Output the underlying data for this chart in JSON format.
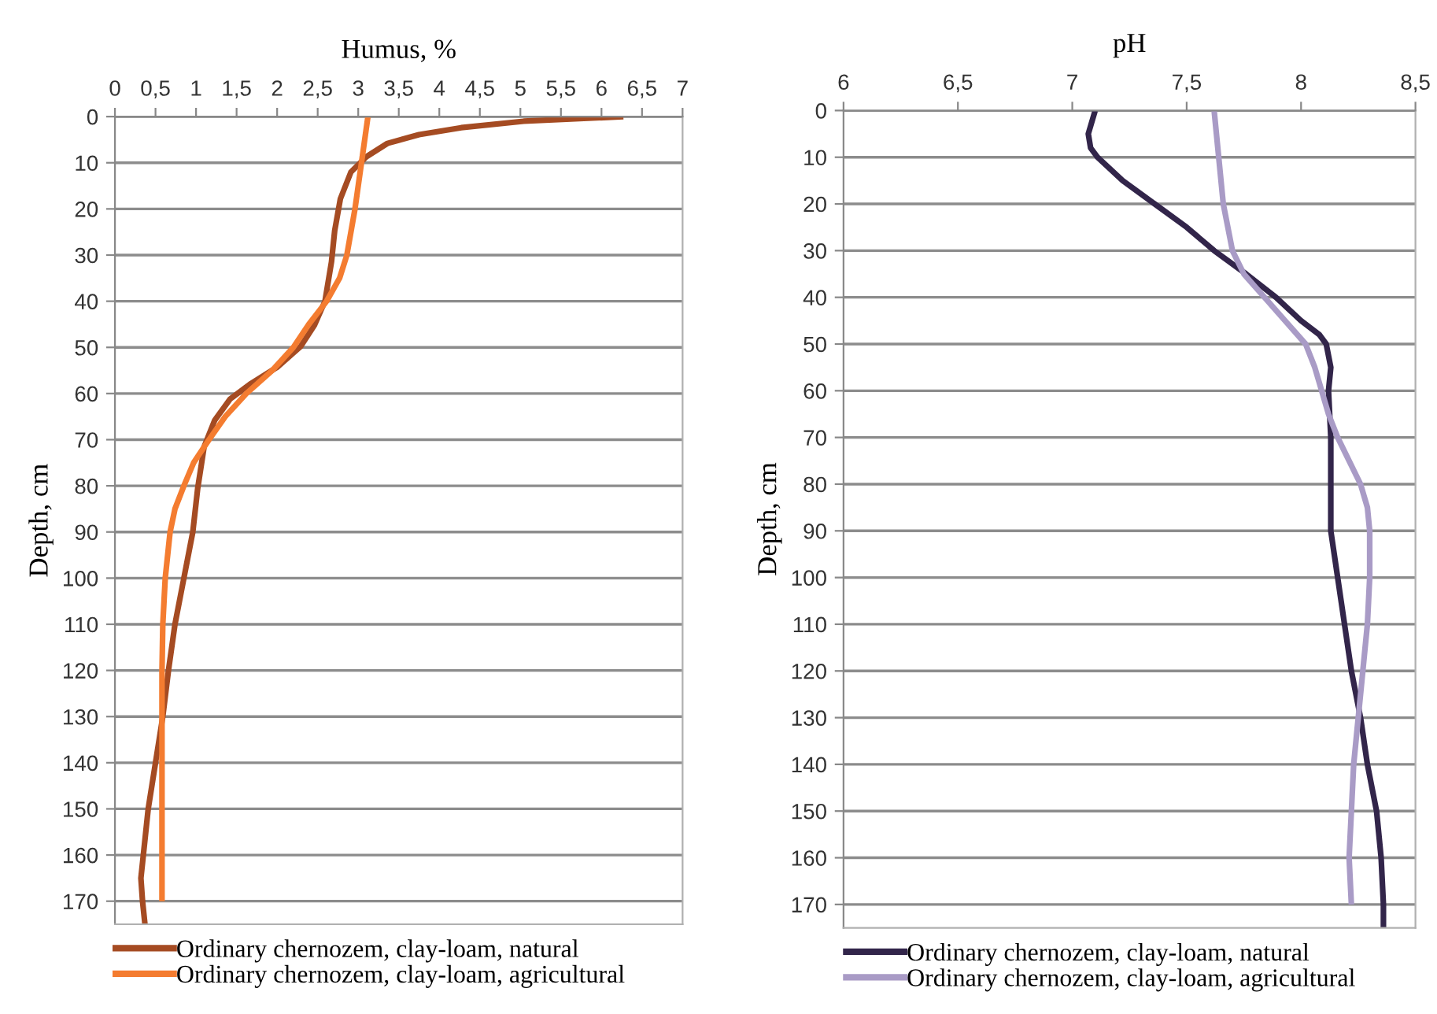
{
  "chart_data": [
    {
      "type": "line",
      "xlabel": "Humus, %",
      "ylabel": "Depth, cm",
      "grid": "y",
      "legend": "bottom",
      "line_style": "solid",
      "xlim": [
        0,
        7
      ],
      "xticks": [
        0,
        {
          "value": 0.5,
          "label": "0,5"
        },
        1,
        {
          "value": 1.5,
          "label": "1,5"
        },
        2,
        {
          "value": 2.5,
          "label": "2,5"
        },
        3,
        {
          "value": 3.5,
          "label": "3,5"
        },
        4,
        {
          "value": 4.5,
          "label": "4,5"
        },
        5,
        {
          "value": 5.5,
          "label": "5,5"
        },
        6,
        {
          "value": 6.5,
          "label": "6,5"
        },
        7
      ],
      "ylim": [
        175,
        0
      ],
      "yticks": [
        0,
        10,
        20,
        30,
        40,
        50,
        60,
        70,
        80,
        90,
        100,
        110,
        120,
        130,
        140,
        150,
        160,
        170
      ],
      "series": [
        {
          "name": "Ordinary chernozem, clay-loam, natural",
          "color": "#a54b22",
          "x": [
            6.27,
            5.04,
            4.27,
            3.75,
            3.36,
            3.1,
            2.91,
            2.78,
            2.71,
            2.67,
            2.59,
            2.46,
            2.29,
            2.0,
            1.68,
            1.42,
            1.23,
            1.1,
            1.02,
            0.96,
            0.85,
            0.74,
            0.66,
            0.59,
            0.5,
            0.41,
            0.35,
            0.32,
            0.34,
            0.37
          ],
          "values": [
            0,
            1,
            2.4,
            3.9,
            5.8,
            8.7,
            12,
            17.8,
            24.7,
            31.5,
            40,
            45.2,
            49.8,
            54.3,
            57.8,
            61.2,
            65.8,
            71.5,
            80.6,
            90,
            100,
            110,
            120,
            130,
            140,
            150,
            160,
            165,
            170,
            175
          ]
        },
        {
          "name": "Ordinary chernozem, clay-loam, agricultural",
          "color": "#f47c30",
          "x": [
            3.12,
            3.04,
            2.96,
            2.86,
            2.77,
            2.61,
            2.39,
            2.2,
            1.94,
            1.62,
            1.36,
            1.16,
            0.97,
            0.85,
            0.74,
            0.68,
            0.62,
            0.59,
            0.58,
            0.58,
            0.58,
            0.58,
            0.58,
            0.58
          ],
          "values": [
            0,
            10,
            20,
            30,
            35,
            40,
            45,
            50,
            55,
            60,
            65,
            70,
            75,
            80,
            85,
            90,
            100,
            110,
            120,
            130,
            140,
            150,
            160,
            170
          ]
        }
      ]
    },
    {
      "type": "line",
      "xlabel": "pH",
      "ylabel": "Depth, cm",
      "grid": "y",
      "legend": "bottom",
      "line_style": "solid",
      "xlim": [
        6,
        8.5
      ],
      "xticks": [
        6,
        {
          "value": 6.5,
          "label": "6,5"
        },
        7,
        {
          "value": 7.5,
          "label": "7,5"
        },
        8,
        {
          "value": 8.5,
          "label": "8,5"
        }
      ],
      "ylim": [
        175,
        0
      ],
      "yticks": [
        0,
        10,
        20,
        30,
        40,
        50,
        60,
        70,
        80,
        90,
        100,
        110,
        120,
        130,
        140,
        150,
        160,
        170
      ],
      "series": [
        {
          "name": "Ordinary chernozem, clay-loam, natural",
          "color": "#32254a",
          "x": [
            7.1,
            7.07,
            7.08,
            7.11,
            7.22,
            7.36,
            7.5,
            7.62,
            7.76,
            7.89,
            8.0,
            8.08,
            8.11,
            8.13,
            8.12,
            8.13,
            8.13,
            8.13,
            8.16,
            8.19,
            8.22,
            8.26,
            8.29,
            8.33,
            8.35,
            8.36,
            8.36
          ],
          "values": [
            0,
            5,
            8,
            10,
            15,
            20,
            25,
            30,
            35,
            40,
            45,
            48,
            50,
            55,
            60,
            70,
            80,
            90,
            100,
            110,
            120,
            130,
            140,
            150,
            160,
            170,
            175
          ]
        },
        {
          "name": "Ordinary chernozem, clay-loam, agricultural",
          "color": "#a99bc6",
          "x": [
            7.62,
            7.64,
            7.66,
            7.7,
            7.75,
            7.84,
            7.93,
            8.02,
            8.06,
            8.09,
            8.12,
            8.16,
            8.21,
            8.26,
            8.29,
            8.3,
            8.3,
            8.29,
            8.27,
            8.25,
            8.23,
            8.22,
            8.21,
            8.22
          ],
          "values": [
            0,
            10,
            20,
            30,
            35,
            40,
            45,
            50,
            55,
            60,
            65,
            70,
            75,
            80,
            85,
            90,
            100,
            110,
            120,
            130,
            140,
            150,
            160,
            170
          ]
        }
      ]
    }
  ]
}
